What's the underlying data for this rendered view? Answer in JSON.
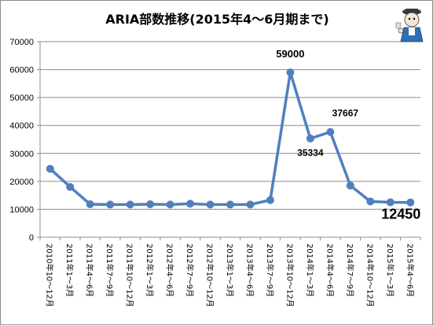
{
  "chart_data": {
    "type": "line",
    "title": "ARIA部数推移(2015年4～6月期まで)",
    "xlabel": "",
    "ylabel": "",
    "ylim": [
      0,
      70000
    ],
    "yticks": [
      0,
      10000,
      20000,
      30000,
      40000,
      50000,
      60000,
      70000
    ],
    "grid": true,
    "legend": "none",
    "line_color": "#4f7fbf",
    "categories": [
      "2010年10～12月",
      "2011年1～3月",
      "2011年4～6月",
      "2011年7～9月",
      "2011年10～12月",
      "2012年1～3月",
      "2012年4～6月",
      "2012年7～9月",
      "2012年10～12月",
      "2013年1～3月",
      "2013年4～6月",
      "2013年7～9月",
      "2013年10～12月",
      "2014年1～3月",
      "2014年4～6月",
      "2014年7～9月",
      "2014年10～12月",
      "2015年1～3月",
      "2015年4～6月"
    ],
    "values": [
      24500,
      18000,
      11800,
      11700,
      11700,
      11800,
      11700,
      12000,
      11700,
      11700,
      11700,
      13300,
      59000,
      35334,
      37667,
      18500,
      12800,
      12500,
      12450
    ],
    "data_labels": [
      {
        "index": 12,
        "text": "59000"
      },
      {
        "index": 13,
        "text": "35334"
      },
      {
        "index": 14,
        "text": "37667"
      },
      {
        "index": 18,
        "text": "12450"
      }
    ]
  },
  "mascot": {
    "icon": "cartoon-character-icon"
  }
}
